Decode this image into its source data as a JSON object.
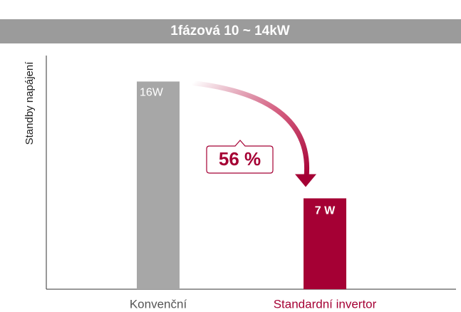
{
  "chart_data": {
    "type": "bar",
    "title": "1fázová 10 ~ 14kW",
    "ylabel": "Standby napájení",
    "categories": [
      "Konvenční",
      "Standardní invertor"
    ],
    "values": [
      16,
      7
    ],
    "value_labels": [
      "16W",
      "7 W"
    ],
    "colors": [
      "#a7a7a7",
      "#a50034"
    ],
    "category_colors": [
      "#555555",
      "#a50034"
    ],
    "annotation": "56 %",
    "ylim": [
      0,
      18
    ]
  }
}
